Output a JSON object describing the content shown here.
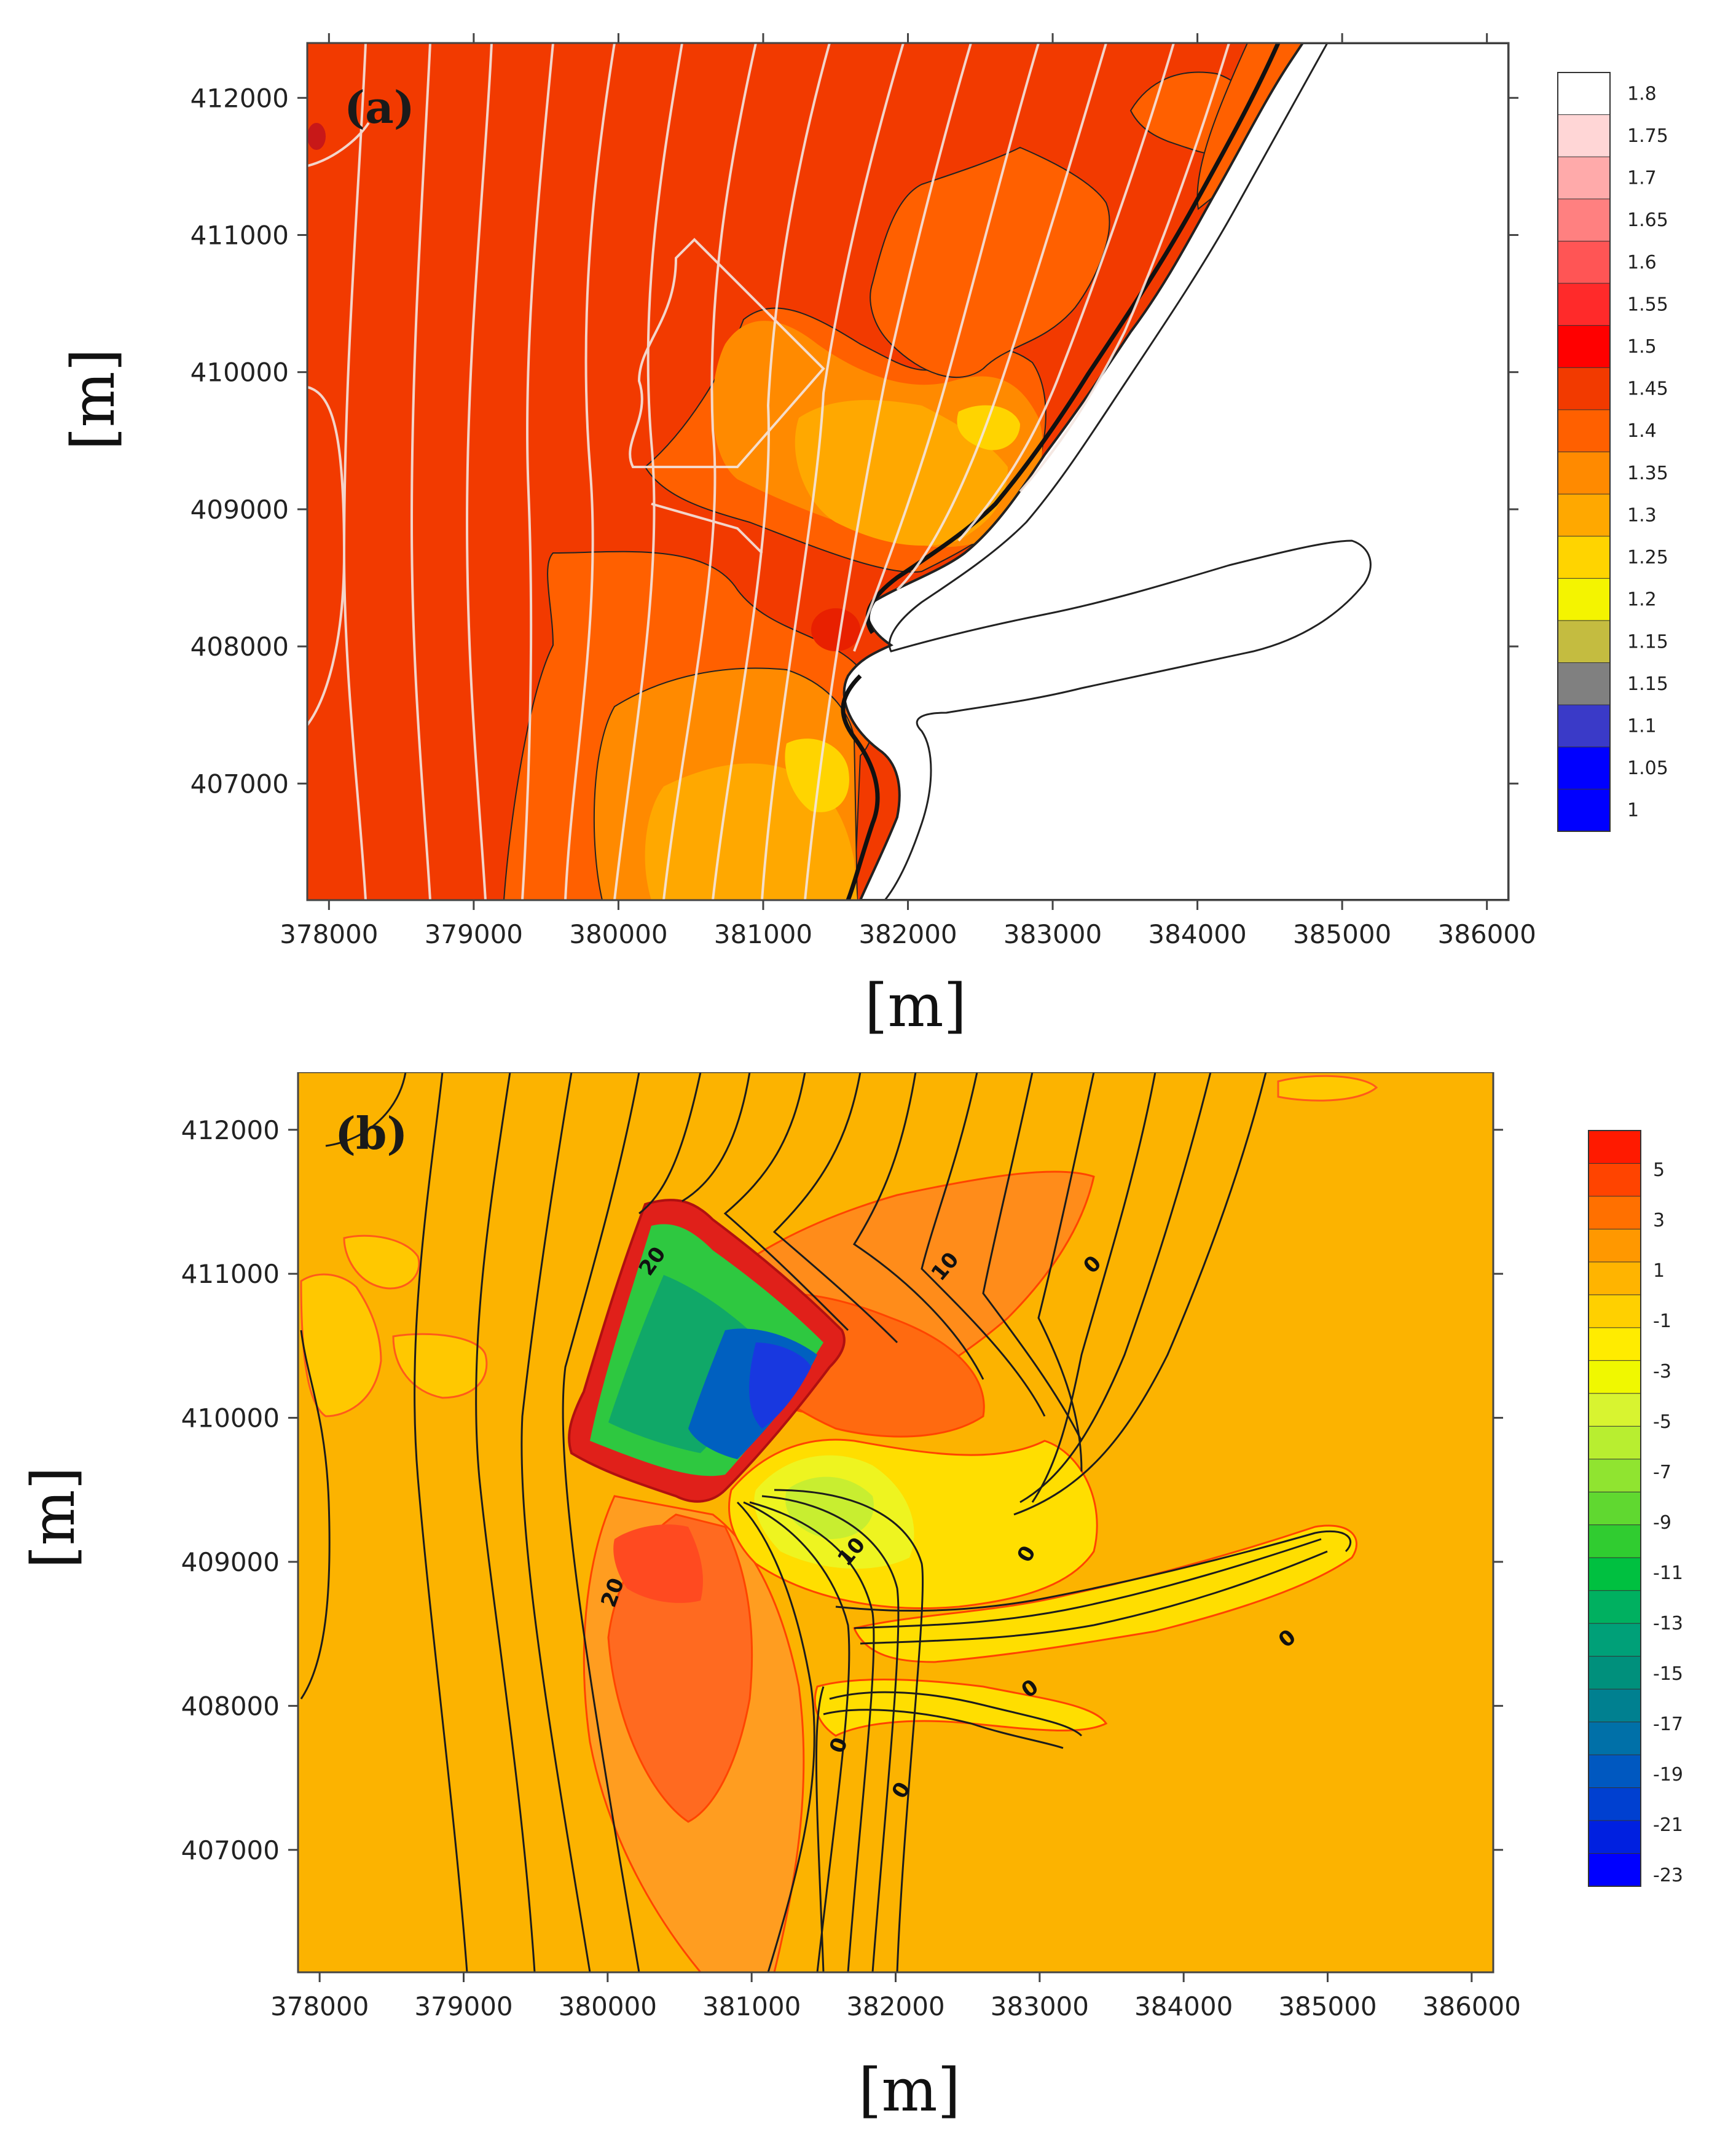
{
  "chart_data": [
    {
      "type": "heatmap",
      "panel": "(a)",
      "xlabel": "[m]",
      "ylabel": "[m]",
      "xlim": [
        377850,
        386150
      ],
      "ylim": [
        406150,
        412400
      ],
      "xticks": [
        378000,
        379000,
        380000,
        381000,
        382000,
        383000,
        384000,
        385000,
        386000
      ],
      "yticks": [
        407000,
        408000,
        409000,
        410000,
        411000,
        412000
      ],
      "colorbar": {
        "labels": [
          "1.8",
          "1.75",
          "1.7",
          "1.65",
          "1.6",
          "1.55",
          "1.5",
          "1.45",
          "1.4",
          "1.35",
          "1.3",
          "1.25",
          "1.2",
          "1.15",
          "1.15",
          "1.1",
          "1.05",
          "1"
        ],
        "colors": [
          "#ffffff",
          "#ffd6d6",
          "#ffaaaa",
          "#ff8080",
          "#ff5555",
          "#ff2a2a",
          "#ff0000",
          "#f23a00",
          "#ff6000",
          "#ff8a00",
          "#ffa800",
          "#ffd400",
          "#f4f400",
          "#c4bc40",
          "#808080",
          "#3a3ac8",
          "#0000ff",
          "#0000ff"
        ]
      },
      "regions": [
        {
          "level": "1.45",
          "color": "#f23a00"
        },
        {
          "level": "1.4",
          "color": "#ff6000"
        },
        {
          "level": "1.35",
          "color": "#ff8a00"
        },
        {
          "level": "1.3",
          "color": "#ffa800"
        },
        {
          "level": "1.25",
          "color": "#ffd400"
        },
        {
          "level": "land",
          "color": "#ffffff"
        }
      ]
    },
    {
      "type": "heatmap",
      "panel": "(b)",
      "xlabel": "[m]",
      "ylabel": "[m]",
      "xlim": [
        377850,
        386150
      ],
      "ylim": [
        406150,
        412400
      ],
      "xticks": [
        378000,
        379000,
        380000,
        381000,
        382000,
        383000,
        384000,
        385000,
        386000
      ],
      "yticks": [
        407000,
        408000,
        409000,
        410000,
        411000,
        412000
      ],
      "colorbar": {
        "labels": [
          "5",
          "3",
          "1",
          "-1",
          "-3",
          "-5",
          "-7",
          "-9",
          "-11",
          "-13",
          "-15",
          "-17",
          "-19",
          "-21",
          "-23"
        ],
        "colors": [
          "#ff1a00",
          "#ff4400",
          "#ff7000",
          "#ff9800",
          "#ffb400",
          "#ffd000",
          "#ffec00",
          "#f0f800",
          "#d8f430",
          "#b8ee30",
          "#90e430",
          "#60d830",
          "#30cc30",
          "#00c040",
          "#00b060",
          "#00a078",
          "#00907c",
          "#008090",
          "#0070a8",
          "#0058c0",
          "#0040d0",
          "#0020e0",
          "#0000ff"
        ]
      },
      "contour_labels": [
        {
          "text": "20",
          "x": 380350,
          "y": 411060,
          "angle": -55
        },
        {
          "text": "10",
          "x": 382380,
          "y": 411020,
          "angle": -50
        },
        {
          "text": "0",
          "x": 383400,
          "y": 411030,
          "angle": -45
        },
        {
          "text": "20",
          "x": 380080,
          "y": 408770,
          "angle": -70
        },
        {
          "text": "10",
          "x": 381730,
          "y": 409040,
          "angle": -50
        },
        {
          "text": "0",
          "x": 382950,
          "y": 409030,
          "angle": -60
        },
        {
          "text": "0",
          "x": 384750,
          "y": 408430,
          "angle": -40
        },
        {
          "text": "0",
          "x": 382960,
          "y": 408080,
          "angle": -35
        },
        {
          "text": "0",
          "x": 381650,
          "y": 407710,
          "angle": -70
        },
        {
          "text": "0",
          "x": 382080,
          "y": 407390,
          "angle": -60
        }
      ]
    }
  ]
}
